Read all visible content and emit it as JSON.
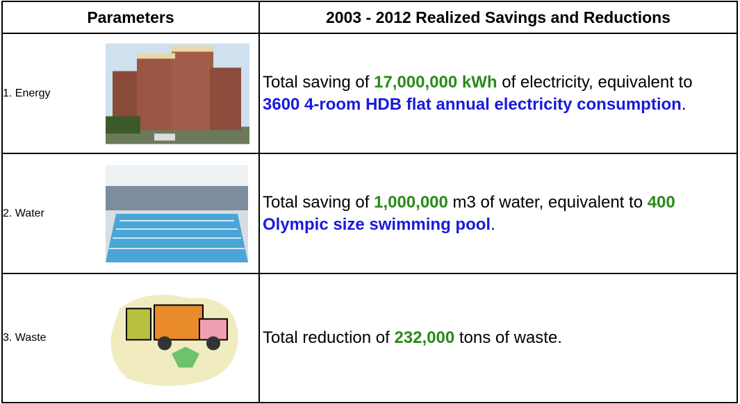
{
  "header": {
    "parameter": "Parameters",
    "result": "2003 - 2012 Realized Savings and Reductions"
  },
  "rows": [
    {
      "parameter": "1. Energy",
      "image": "building",
      "description": [
        {
          "text": "Total saving of ",
          "color": "#000000",
          "bold": false
        },
        {
          "text": "17,000,000 kWh",
          "color": "#2a8a1a",
          "bold": true
        },
        {
          "text": " of electricity, equivalent to ",
          "color": "#000000",
          "bold": false
        },
        {
          "text": "3600 4-room HDB flat annual electricity consumption",
          "color": "#1a1adc",
          "bold": true
        },
        {
          "text": ".",
          "color": "#000000",
          "bold": false
        }
      ]
    },
    {
      "parameter": "2. Water",
      "image": "pool",
      "description": [
        {
          "text": "Total saving of ",
          "color": "#000000",
          "bold": false
        },
        {
          "text": "1,000,000",
          "color": "#2a8a1a",
          "bold": true
        },
        {
          "text": " m3 of water, equivalent to ",
          "color": "#000000",
          "bold": false
        },
        {
          "text": "400",
          "color": "#2a8a1a",
          "bold": true
        },
        {
          "text": " Olympic size swimming pool",
          "color": "#1a1adc",
          "bold": true
        },
        {
          "text": ".",
          "color": "#000000",
          "bold": false
        }
      ]
    },
    {
      "parameter": "3. Waste",
      "image": "truck",
      "description": [
        {
          "text": "Total reduction of ",
          "color": "#000000",
          "bold": false
        },
        {
          "text": "232,000",
          "color": "#2a8a1a",
          "bold": true
        },
        {
          "text": " tons of waste.",
          "color": "#000000",
          "bold": false
        }
      ]
    }
  ]
}
